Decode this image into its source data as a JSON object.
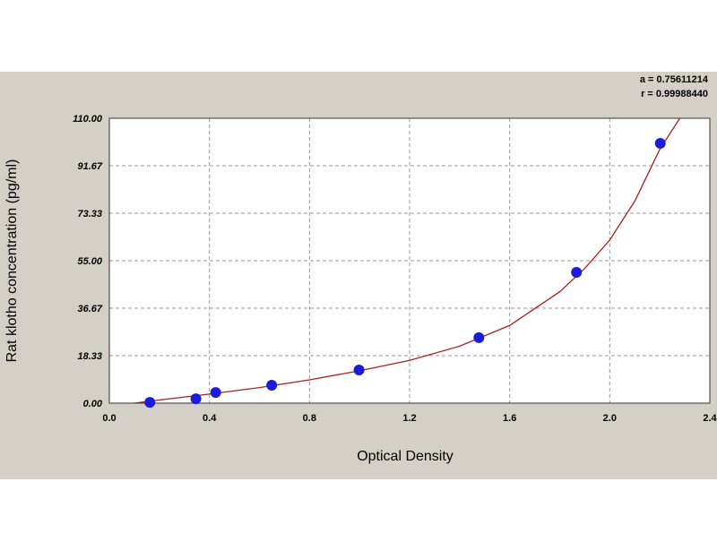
{
  "chart_data": {
    "type": "scatter",
    "x_label": "Optical Density",
    "y_label": "Rat klotho concentration (pg/ml)",
    "annotations": [
      "a = 0.75611214",
      "r = 0.99988440"
    ],
    "xlim": [
      0,
      2.4
    ],
    "ylim": [
      0,
      110
    ],
    "xticks": [
      {
        "value": 0,
        "label": "0.0"
      },
      {
        "value": 0.4,
        "label": "0.4"
      },
      {
        "value": 0.8,
        "label": "0.8"
      },
      {
        "value": 1.2,
        "label": "1.2"
      },
      {
        "value": 1.6,
        "label": "1.6"
      },
      {
        "value": 2.0,
        "label": "2.0"
      },
      {
        "value": 2.4,
        "label": "2.4"
      }
    ],
    "yticks": [
      {
        "value": 0,
        "label": "0.00"
      },
      {
        "value": 18.33,
        "label": "18.33"
      },
      {
        "value": 36.67,
        "label": "36.67"
      },
      {
        "value": 55,
        "label": "55.00"
      },
      {
        "value": 73.33,
        "label": "73.33"
      },
      {
        "value": 91.67,
        "label": "91.67"
      },
      {
        "value": 110,
        "label": "110.00"
      }
    ],
    "grid": true,
    "series": [
      {
        "type": "scatter",
        "color": "#1c1cd8",
        "x": [
          0.162,
          0.346,
          0.425,
          0.649,
          0.998,
          1.477,
          1.867,
          2.202
        ],
        "values": [
          0.3,
          1.7,
          4.1,
          6.9,
          12.8,
          25.3,
          50.5,
          100.3
        ]
      },
      {
        "type": "line",
        "color": "#a82020",
        "x": [
          0.1,
          0.2,
          0.4,
          0.6,
          0.8,
          1.0,
          1.2,
          1.4,
          1.6,
          1.8,
          1.9,
          2.0,
          2.1,
          2.2,
          2.28
        ],
        "values": [
          0,
          1.2,
          3.5,
          6.0,
          9.0,
          12.5,
          16.5,
          22.0,
          30.0,
          43.0,
          52.0,
          63.0,
          78.0,
          98.0,
          110.0
        ]
      }
    ]
  }
}
